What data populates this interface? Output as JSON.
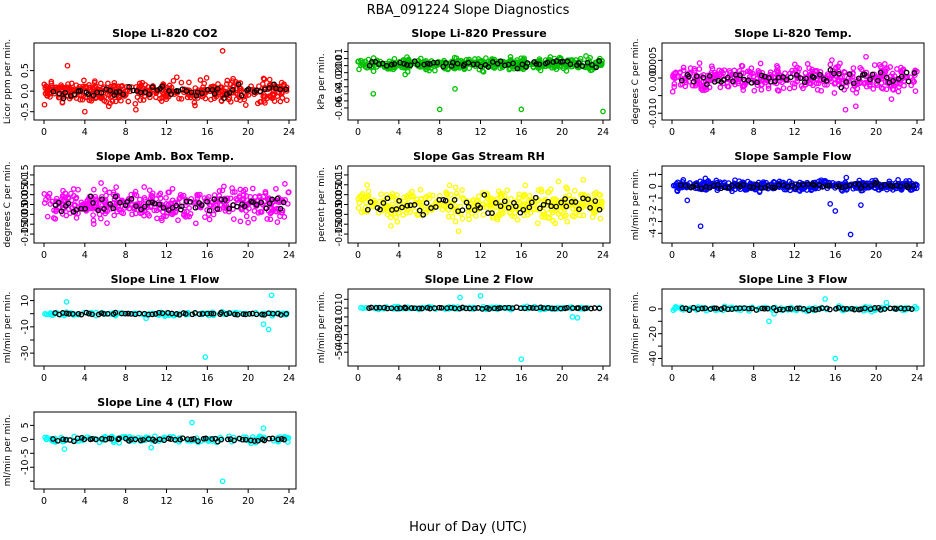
{
  "figure_title": "RBA_091224  Slope Diagnostics",
  "x_axis_label": "Hour of Day (UTC)",
  "colors": {
    "reference_series": "#000000"
  },
  "chart_data": [
    {
      "type": "scatter",
      "title": "Slope Li-820 CO2",
      "ylabel": "Licor ppm per min.",
      "color": "#ff0000",
      "xlim": [
        0,
        24
      ],
      "ylim": [
        -0.58,
        1.05
      ],
      "xticks": [
        0,
        4,
        8,
        12,
        16,
        20,
        24
      ],
      "xtick_labels": [
        "0",
        "4",
        "8",
        "12",
        "16",
        "20",
        "24"
      ],
      "yticks": [
        -0.5,
        0.0,
        0.5
      ],
      "ytick_labels": [
        "-0.5",
        "0.0",
        "0.5"
      ],
      "series_summary": {
        "center": 0.0,
        "spread": 0.18,
        "n_main": 420,
        "n_reference": 60,
        "outliers": [
          [
            17.5,
            0.98
          ],
          [
            2.3,
            0.62
          ],
          [
            4.0,
            -0.5
          ],
          [
            9.0,
            -0.45
          ]
        ]
      }
    },
    {
      "type": "scatter",
      "title": "Slope Li-820 Pressure",
      "ylabel": "kPa per min.",
      "color": "#00c000",
      "xlim": [
        0,
        24
      ],
      "ylim": [
        -0.07,
        0.025
      ],
      "xticks": [
        0,
        4,
        8,
        12,
        16,
        20,
        24
      ],
      "xtick_labels": [
        "0",
        "4",
        "8",
        "12",
        "16",
        "20",
        "24"
      ],
      "yticks": [
        -0.06,
        -0.05,
        -0.04,
        -0.03,
        -0.02,
        -0.01,
        0.0,
        0.01,
        0.02
      ],
      "ytick_labels": [
        "-0.06",
        "",
        "-0.04",
        "",
        "-0.02",
        "",
        "0.00",
        "0.01",
        ""
      ],
      "series_summary": {
        "center": 0.002,
        "spread": 0.006,
        "n_main": 420,
        "n_reference": 60,
        "outliers": [
          [
            1.5,
            -0.04
          ],
          [
            8.0,
            -0.062
          ],
          [
            9.5,
            -0.033
          ],
          [
            16.0,
            -0.062
          ],
          [
            24.0,
            -0.065
          ]
        ]
      }
    },
    {
      "type": "scatter",
      "title": "Slope Li-820 Temp.",
      "ylabel": "degrees C per min.",
      "color": "#ff00ff",
      "xlim": [
        0,
        24
      ],
      "ylim": [
        -0.0105,
        0.0085
      ],
      "xticks": [
        0,
        4,
        8,
        12,
        16,
        20,
        24
      ],
      "xtick_labels": [
        "0",
        "4",
        "8",
        "12",
        "16",
        "20",
        "24"
      ],
      "yticks": [
        -0.01,
        -0.005,
        0.0,
        0.005
      ],
      "ytick_labels": [
        "-0.010",
        "",
        "0.000",
        "0.005"
      ],
      "series_summary": {
        "center": 0.0,
        "spread": 0.0025,
        "n_main": 420,
        "n_reference": 60,
        "outliers": [
          [
            17.0,
            -0.009
          ],
          [
            18.0,
            -0.008
          ],
          [
            19.0,
            0.006
          ],
          [
            21.5,
            -0.006
          ]
        ]
      }
    },
    {
      "type": "scatter",
      "title": "Slope Amb. Box Temp.",
      "ylabel": "degrees C per min.",
      "color": "#ff00ff",
      "xlim": [
        0,
        24
      ],
      "ylim": [
        -0.17,
        0.17
      ],
      "xticks": [
        0,
        4,
        8,
        12,
        16,
        20,
        24
      ],
      "xtick_labels": [
        "0",
        "4",
        "8",
        "12",
        "16",
        "20",
        "24"
      ],
      "yticks": [
        -0.15,
        -0.1,
        -0.05,
        0.0,
        0.05,
        0.1,
        0.15
      ],
      "ytick_labels": [
        "-0.15",
        "-0.10",
        "-0.05",
        "0.00",
        "0.05",
        "0.10",
        "0.15"
      ],
      "series_summary": {
        "center": 0.0,
        "spread": 0.055,
        "n_main": 420,
        "n_reference": 60,
        "outliers": []
      }
    },
    {
      "type": "scatter",
      "title": "Slope Gas Stream RH",
      "ylabel": "percent per min.",
      "color": "#ffff00",
      "xlim": [
        0,
        24
      ],
      "ylim": [
        -0.17,
        0.17
      ],
      "xticks": [
        0,
        4,
        8,
        12,
        16,
        20,
        24
      ],
      "xtick_labels": [
        "0",
        "4",
        "8",
        "12",
        "16",
        "20",
        "24"
      ],
      "yticks": [
        -0.15,
        -0.1,
        -0.05,
        0.0,
        0.05,
        0.1,
        0.15
      ],
      "ytick_labels": [
        "-0.15",
        "-0.10",
        "-0.05",
        "0.00",
        "0.05",
        "0.10",
        "0.15"
      ],
      "series_summary": {
        "center": 0.0,
        "spread": 0.055,
        "n_main": 420,
        "n_reference": 60,
        "outliers": []
      }
    },
    {
      "type": "scatter",
      "title": "Slope Sample Flow",
      "ylabel": "ml/min per min.",
      "color": "#0000ff",
      "xlim": [
        0,
        24
      ],
      "ylim": [
        -4.4,
        1.3
      ],
      "xticks": [
        0,
        4,
        8,
        12,
        16,
        20,
        24
      ],
      "xtick_labels": [
        "0",
        "4",
        "8",
        "12",
        "16",
        "20",
        "24"
      ],
      "yticks": [
        -4,
        -3,
        -2,
        -1,
        0,
        1
      ],
      "ytick_labels": [
        "-4",
        "-3",
        "-2",
        "-1",
        "0",
        "1"
      ],
      "series_summary": {
        "center": 0.05,
        "spread": 0.3,
        "n_main": 420,
        "n_reference": 60,
        "outliers": [
          [
            1.5,
            -1.2
          ],
          [
            2.8,
            -3.4
          ],
          [
            15.5,
            -1.5
          ],
          [
            16.0,
            -2.1
          ],
          [
            17.5,
            -4.1
          ],
          [
            18.5,
            -1.6
          ]
        ]
      }
    },
    {
      "type": "scatter",
      "title": "Slope Line 1 Flow",
      "ylabel": "ml/min per min.",
      "color": "#00ffff",
      "xlim": [
        0,
        24
      ],
      "ylim": [
        -36,
        15
      ],
      "xticks": [
        0,
        4,
        8,
        12,
        16,
        20,
        24
      ],
      "xtick_labels": [
        "0",
        "4",
        "8",
        "12",
        "16",
        "20",
        "24"
      ],
      "yticks": [
        -30,
        -20,
        -10,
        0,
        10
      ],
      "ytick_labels": [
        "-30",
        "",
        "-10",
        "",
        "10"
      ],
      "series_summary": {
        "center": 0.0,
        "spread": 1.0,
        "n_main": 130,
        "n_reference": 60,
        "outliers": [
          [
            2.2,
            9.0
          ],
          [
            10.0,
            -3.5
          ],
          [
            15.8,
            -33.0
          ],
          [
            21.5,
            -8.0
          ],
          [
            22.0,
            -12.0
          ],
          [
            22.3,
            14.0
          ]
        ]
      }
    },
    {
      "type": "scatter",
      "title": "Slope Line 2 Flow",
      "ylabel": "ml/min per min.",
      "color": "#00ffff",
      "xlim": [
        0,
        24
      ],
      "ylim": [
        -60,
        16
      ],
      "xticks": [
        0,
        4,
        8,
        12,
        16,
        20,
        24
      ],
      "xtick_labels": [
        "0",
        "4",
        "8",
        "12",
        "16",
        "20",
        "24"
      ],
      "yticks": [
        -50,
        -40,
        -30,
        -20,
        -10,
        0,
        10
      ],
      "ytick_labels": [
        "-50",
        "-40",
        "-30",
        "-20",
        "-10",
        "0",
        "10"
      ],
      "series_summary": {
        "center": 0.0,
        "spread": 1.2,
        "n_main": 130,
        "n_reference": 60,
        "outliers": [
          [
            10.0,
            12.0
          ],
          [
            12.0,
            14.0
          ],
          [
            16.0,
            -58.0
          ],
          [
            21.0,
            -10.0
          ],
          [
            21.5,
            -11.0
          ]
        ]
      }
    },
    {
      "type": "scatter",
      "title": "Slope Line 3 Flow",
      "ylabel": "ml/min per min.",
      "color": "#00ffff",
      "xlim": [
        0,
        24
      ],
      "ylim": [
        -42,
        12
      ],
      "xticks": [
        0,
        4,
        8,
        12,
        16,
        20,
        24
      ],
      "xtick_labels": [
        "0",
        "4",
        "8",
        "12",
        "16",
        "20",
        "24"
      ],
      "yticks": [
        -40,
        -30,
        -20,
        -10,
        0
      ],
      "ytick_labels": [
        "-40",
        "",
        "-20",
        "",
        "0"
      ],
      "series_summary": {
        "center": 0.0,
        "spread": 1.2,
        "n_main": 130,
        "n_reference": 60,
        "outliers": [
          [
            9.5,
            -10.0
          ],
          [
            10.0,
            -4.0
          ],
          [
            15.0,
            8.0
          ],
          [
            16.0,
            -40.0
          ],
          [
            21.0,
            5.0
          ]
        ]
      }
    },
    {
      "type": "scatter",
      "title": "Slope Line 4 (LT) Flow",
      "ylabel": "ml/min per min.",
      "color": "#00ffff",
      "xlim": [
        0,
        24
      ],
      "ylim": [
        -16,
        8
      ],
      "xticks": [
        0,
        4,
        8,
        12,
        16,
        20,
        24
      ],
      "xtick_labels": [
        "0",
        "4",
        "8",
        "12",
        "16",
        "20",
        "24"
      ],
      "yticks": [
        -15,
        -10,
        -5,
        0,
        5
      ],
      "ytick_labels": [
        "",
        "-10",
        "-5",
        "0",
        "5"
      ],
      "series_summary": {
        "center": 0.0,
        "spread": 0.8,
        "n_main": 150,
        "n_reference": 60,
        "outliers": [
          [
            2.0,
            -3.5
          ],
          [
            10.5,
            -3.0
          ],
          [
            14.5,
            6.0
          ],
          [
            17.5,
            -15.0
          ],
          [
            21.5,
            4.0
          ]
        ]
      }
    }
  ]
}
